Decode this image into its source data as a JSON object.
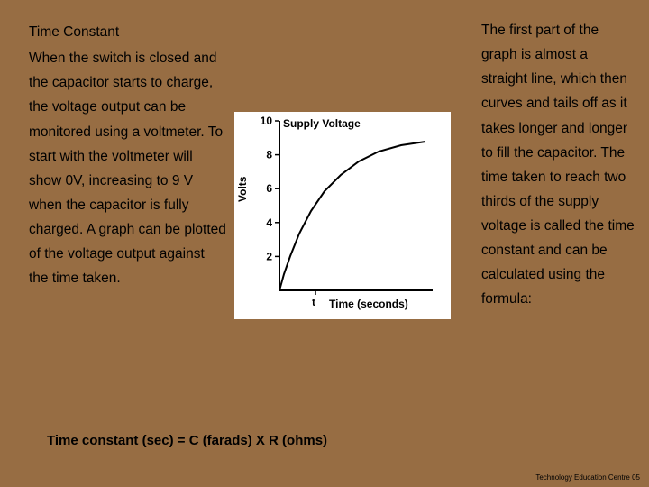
{
  "background_color": "#976d43",
  "left": {
    "title": "Time Constant",
    "body": "When the switch is closed and the capacitor starts to charge, the voltage output can be monitored using a voltmeter. To start with the voltmeter will show 0V, increasing to 9 V when the capacitor is fully charged. A graph can be plotted of the voltage output against the time taken."
  },
  "right": {
    "body": "The first part of the graph is almost a straight line, which then curves and tails off as it takes longer and longer to fill the capacitor. The time taken to reach two thirds of the supply voltage is called the time constant and can be calculated using the formula:"
  },
  "formula": "Time constant (sec) = C (farads) X R (ohms)",
  "footer": "Technology Education Centre 05",
  "chart": {
    "type": "line",
    "background_color": "#ffffff",
    "axis_color": "#000000",
    "curve_color": "#000000",
    "supply_label": "Supply Voltage",
    "ylabel": "Volts",
    "xlabel": "Time (seconds)",
    "t_marker": "t",
    "yticks": [
      2,
      4,
      6,
      8,
      10
    ],
    "ylim": [
      0,
      10
    ],
    "supply_value": 9,
    "axis_origin_x": 50,
    "axis_origin_y": 198,
    "axis_width": 170,
    "axis_height": 188,
    "curve_points": [
      [
        50,
        198
      ],
      [
        55,
        180
      ],
      [
        62,
        160
      ],
      [
        72,
        135
      ],
      [
        85,
        110
      ],
      [
        100,
        88
      ],
      [
        118,
        70
      ],
      [
        138,
        55
      ],
      [
        160,
        44
      ],
      [
        185,
        37
      ],
      [
        212,
        33
      ]
    ],
    "tick_len": 5,
    "curve_stroke_width": 2,
    "axis_stroke_width": 2,
    "ytick_fontsize": 12,
    "label_fontsize": 12
  }
}
